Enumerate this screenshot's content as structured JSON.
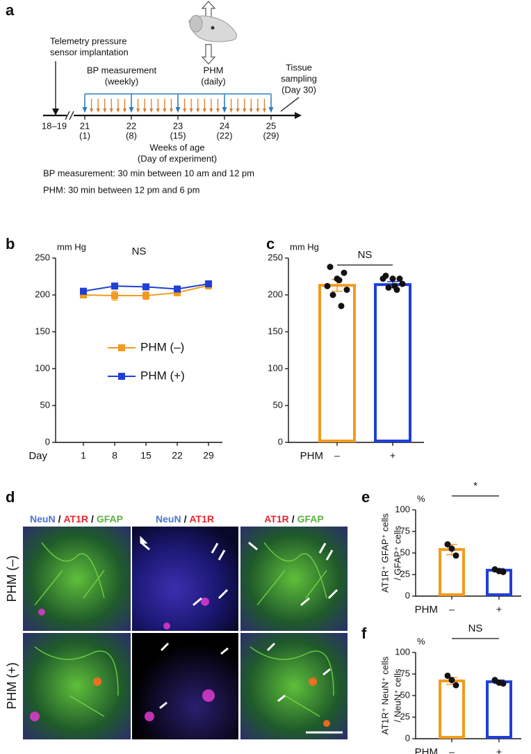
{
  "panel_labels": [
    "a",
    "b",
    "c",
    "d",
    "e",
    "f"
  ],
  "panel_a": {
    "implant": [
      "Telemetry pressure",
      "sensor implantation"
    ],
    "bp": [
      "BP measurement",
      "(weekly)"
    ],
    "phm": [
      "PHM",
      "(daily)"
    ],
    "tissue": [
      "Tissue",
      "sampling",
      "(Day 30)"
    ],
    "start_label": "18–19",
    "weeks": [
      "21",
      "22",
      "23",
      "24",
      "25"
    ],
    "days": [
      "(1)",
      "(8)",
      "(15)",
      "(22)",
      "(29)"
    ],
    "axis_title": [
      "Weeks of age",
      "(Day of experiment)"
    ],
    "notes": [
      "BP measurement: 30 min between 10 am and 12 pm",
      "PHM: 30 min between 12 pm and 6 pm"
    ]
  },
  "chart_data": [
    {
      "type": "line",
      "title": "NS",
      "unit": "mm Hg",
      "x_label": "Day",
      "categories": [
        "1",
        "8",
        "15",
        "22",
        "29"
      ],
      "series": [
        {
          "name": "PHM (–)",
          "color": "#f39a1f",
          "values": [
            200,
            199,
            199,
            203,
            213
          ],
          "errors": [
            4,
            6,
            5,
            4,
            5
          ]
        },
        {
          "name": "PHM (+)",
          "color": "#1f3fd6",
          "values": [
            205,
            212,
            211,
            208,
            215
          ],
          "errors": [
            3,
            3,
            4,
            3,
            4
          ]
        }
      ],
      "ylim": [
        0,
        250
      ],
      "yticks": [
        0,
        50,
        100,
        150,
        200,
        250
      ]
    },
    {
      "type": "bar",
      "annotation": "NS",
      "unit": "mm Hg",
      "x_label": "PHM",
      "categories": [
        "–",
        "+"
      ],
      "values": [
        213,
        214
      ],
      "errors": [
        8,
        4
      ],
      "colors": [
        "#f39a1f",
        "#1f3fd6"
      ],
      "points": [
        [
          238,
          230,
          222,
          212,
          207,
          200,
          185,
          220
        ],
        [
          226,
          222,
          222,
          222,
          215,
          210,
          207,
          212
        ]
      ],
      "ylim": [
        0,
        250
      ],
      "yticks": [
        0,
        50,
        100,
        150,
        200,
        250
      ]
    },
    {
      "type": "bar",
      "annotation": "*",
      "unit": "%",
      "x_label": "PHM",
      "ylabel": [
        "AT1R⁺ GFAP⁺ cells",
        "/ GFAP⁺ cells"
      ],
      "categories": [
        "–",
        "+"
      ],
      "values": [
        54,
        30
      ],
      "errors": [
        6,
        2
      ],
      "colors": [
        "#f39a1f",
        "#1f3fd6"
      ],
      "points": [
        [
          60,
          55,
          47
        ],
        [
          31,
          29,
          28
        ]
      ],
      "ylim": [
        0,
        100
      ],
      "yticks": [
        0,
        25,
        50,
        75,
        100
      ]
    },
    {
      "type": "bar",
      "annotation": "NS",
      "unit": "%",
      "x_label": "PHM",
      "ylabel": [
        "AT1R⁺ NeuN⁺ cells",
        "/ NeuN⁺ cells"
      ],
      "categories": [
        "–",
        "+"
      ],
      "values": [
        67,
        66
      ],
      "errors": [
        4,
        2
      ],
      "colors": [
        "#f39a1f",
        "#1f3fd6"
      ],
      "points": [
        [
          73,
          68,
          62
        ],
        [
          68,
          65,
          64
        ]
      ],
      "ylim": [
        0,
        100
      ],
      "yticks": [
        0,
        25,
        50,
        75,
        100
      ]
    }
  ],
  "panel_d": {
    "columns": [
      [
        {
          "text": "NeuN",
          "color": "#4a72d0"
        },
        {
          "text": "/",
          "color": "#111111"
        },
        {
          "text": "AT1R",
          "color": "#e8252a"
        },
        {
          "text": "/",
          "color": "#111111"
        },
        {
          "text": "GFAP",
          "color": "#5bb040"
        }
      ],
      [
        {
          "text": "NeuN",
          "color": "#4a72d0"
        },
        {
          "text": "/",
          "color": "#111111"
        },
        {
          "text": "AT1R",
          "color": "#e8252a"
        }
      ],
      [
        {
          "text": "AT1R",
          "color": "#e8252a"
        },
        {
          "text": "/",
          "color": "#111111"
        },
        {
          "text": "GFAP",
          "color": "#5bb040"
        }
      ]
    ],
    "rows": [
      "PHM (–)",
      "PHM (+)"
    ]
  }
}
